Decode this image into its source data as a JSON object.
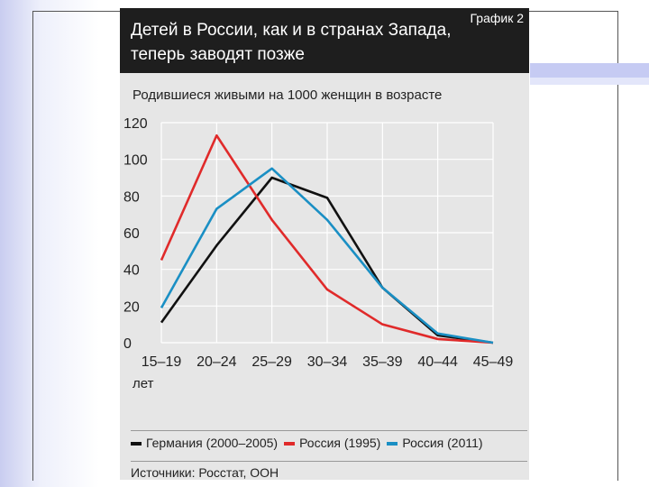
{
  "chart_data": {
    "type": "line",
    "title": "Детей в России, как и в странах Запада, теперь заводят позже",
    "graph_label": "График 2",
    "ylabel": "Родившиеся живыми на 1000 женщин в возрасте",
    "xlabel_unit": "лет",
    "categories": [
      "15–19",
      "20–24",
      "25–29",
      "30–34",
      "35–39",
      "40–44",
      "45–49"
    ],
    "yticks": [
      "120",
      "100",
      "80",
      "60",
      "40",
      "20",
      "0"
    ],
    "ylim": [
      0,
      120
    ],
    "grid": true,
    "legend_position": "bottom",
    "series": [
      {
        "name": "Германия (2000–2005)",
        "color": "#111111",
        "values": [
          11,
          53,
          90,
          79,
          30,
          4,
          0
        ]
      },
      {
        "name": "Россия (1995)",
        "color": "#e02a2a",
        "values": [
          45,
          113,
          67,
          29,
          10,
          2,
          0
        ]
      },
      {
        "name": "Россия (2011)",
        "color": "#1a8fc4",
        "values": [
          19,
          73,
          95,
          67,
          30,
          5,
          0
        ]
      }
    ],
    "sources": "Источники: Росстат, ООН"
  }
}
